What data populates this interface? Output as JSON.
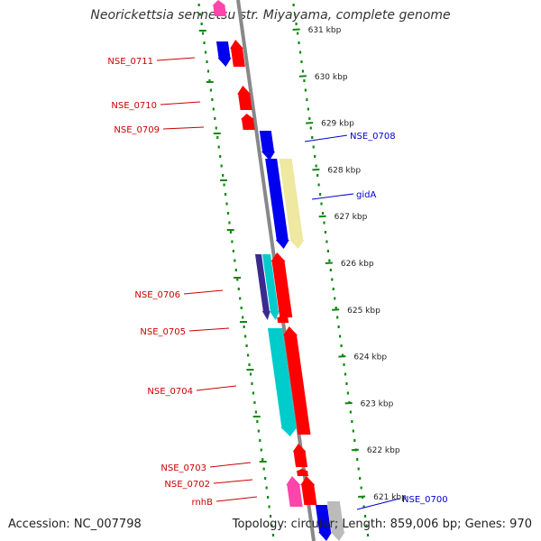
{
  "title": "Neorickettsia sennetsu str. Miyayama, complete genome",
  "footer": {
    "accession": "Accession: NC_007798",
    "summary": "Topology: circular; Length: 859,006 bp; Genes: 970"
  },
  "colors": {
    "forward_gene": "#ff0000",
    "reverse_gene": "#0000ee",
    "label_forward": "#cc0000",
    "label_reverse": "#0000cc",
    "rrna": "#00cccc",
    "gidA": "#eee8a0",
    "dark_purple": "#3a2a90",
    "pink": "#ff44aa",
    "gray": "#bbbbbb",
    "axis": "#888888",
    "dots": "#118811"
  },
  "kbp_ticks": [
    "631 kbp",
    "630 kbp",
    "629 kbp",
    "628 kbp",
    "627 kbp",
    "626 kbp",
    "625 kbp",
    "624 kbp",
    "623 kbp",
    "622 kbp",
    "621 kbp"
  ],
  "gene_labels": [
    {
      "text": "NSE_0711",
      "strand": "forward"
    },
    {
      "text": "NSE_0710",
      "strand": "forward"
    },
    {
      "text": "NSE_0709",
      "strand": "forward"
    },
    {
      "text": "NSE_0708",
      "strand": "reverse"
    },
    {
      "text": "gidA",
      "strand": "reverse"
    },
    {
      "text": "NSE_0706",
      "strand": "forward"
    },
    {
      "text": "NSE_0705",
      "strand": "forward"
    },
    {
      "text": "NSE_0704",
      "strand": "forward"
    },
    {
      "text": "NSE_0703",
      "strand": "forward"
    },
    {
      "text": "NSE_0702",
      "strand": "forward"
    },
    {
      "text": "rnhB",
      "strand": "forward"
    },
    {
      "text": "NSE_0700",
      "strand": "reverse"
    }
  ]
}
